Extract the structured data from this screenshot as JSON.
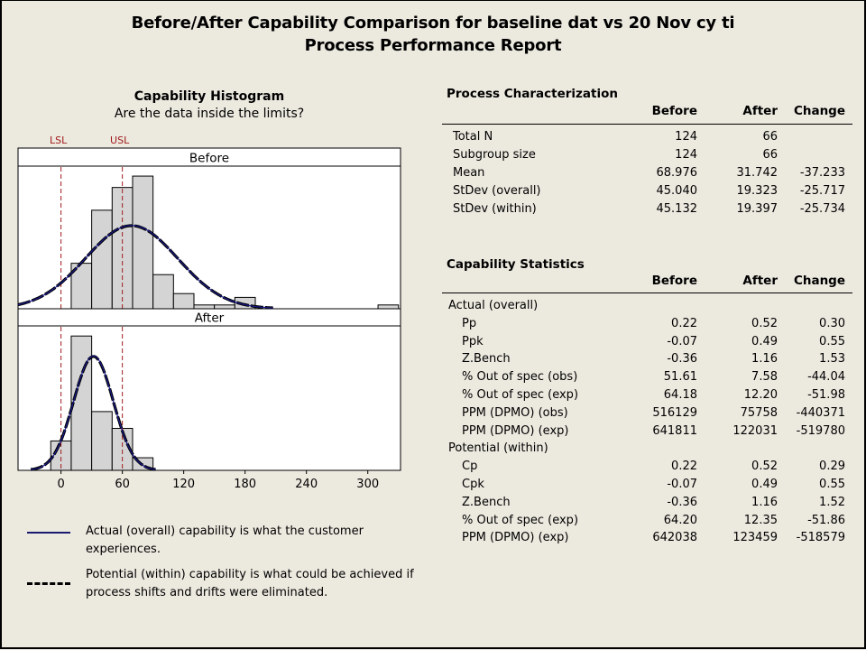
{
  "title": {
    "line1": "Before/After Capability Comparison for baseline dat vs 20 Nov cy ti",
    "line2": "Process Performance Report"
  },
  "histogram": {
    "title": "Capability Histogram",
    "subtitle": "Are the data inside the limits?"
  },
  "legend": {
    "solid": "Actual (overall) capability is what the customer experiences.",
    "dashed_line1": "Potential (within) capability is what could be achieved if",
    "dashed_line2": "process shifts and drifts were eliminated."
  },
  "process_characterization": {
    "heading": "Process Characterization",
    "columns": [
      "Before",
      "After",
      "Change"
    ],
    "rows": [
      {
        "label": "Total N",
        "before": "124",
        "after": "66",
        "change": ""
      },
      {
        "label": "Subgroup size",
        "before": "124",
        "after": "66",
        "change": ""
      },
      {
        "label": "Mean",
        "before": "68.976",
        "after": "31.742",
        "change": "-37.233"
      },
      {
        "label": "StDev (overall)",
        "before": "45.040",
        "after": "19.323",
        "change": "-25.717"
      },
      {
        "label": "StDev (within)",
        "before": "45.132",
        "after": "19.397",
        "change": "-25.734"
      }
    ]
  },
  "capability_statistics": {
    "heading": "Capability Statistics",
    "columns": [
      "Before",
      "After",
      "Change"
    ],
    "groups": [
      {
        "label": "Actual (overall)",
        "rows": [
          {
            "label": "Pp",
            "before": "0.22",
            "after": "0.52",
            "change": "0.30"
          },
          {
            "label": "Ppk",
            "before": "-0.07",
            "after": "0.49",
            "change": "0.55"
          },
          {
            "label": "Z.Bench",
            "before": "-0.36",
            "after": "1.16",
            "change": "1.53"
          },
          {
            "label": "% Out of spec (obs)",
            "before": "51.61",
            "after": "7.58",
            "change": "-44.04"
          },
          {
            "label": "% Out of spec (exp)",
            "before": "64.18",
            "after": "12.20",
            "change": "-51.98"
          },
          {
            "label": "PPM (DPMO) (obs)",
            "before": "516129",
            "after": "75758",
            "change": "-440371"
          },
          {
            "label": "PPM (DPMO) (exp)",
            "before": "641811",
            "after": "122031",
            "change": "-519780"
          }
        ]
      },
      {
        "label": "Potential (within)",
        "rows": [
          {
            "label": "Cp",
            "before": "0.22",
            "after": "0.52",
            "change": "0.29"
          },
          {
            "label": "Cpk",
            "before": "-0.07",
            "after": "0.49",
            "change": "0.55"
          },
          {
            "label": "Z.Bench",
            "before": "-0.36",
            "after": "1.16",
            "change": "1.52"
          },
          {
            "label": "% Out of spec (exp)",
            "before": "64.20",
            "after": "12.35",
            "change": "-51.86"
          },
          {
            "label": "PPM (DPMO) (exp)",
            "before": "642038",
            "after": "123459",
            "change": "-518579"
          }
        ]
      }
    ]
  },
  "chart_data": {
    "type": "histogram",
    "title": "Capability Histogram",
    "subtitle": "Are the data inside the limits?",
    "xlim": [
      -42,
      332
    ],
    "x_ticks": [
      0,
      60,
      120,
      180,
      240,
      300
    ],
    "x_tick_labels": [
      "0",
      "60",
      "120",
      "180",
      "240",
      "300"
    ],
    "spec_limits": [
      {
        "label": "LSL",
        "value": 0
      },
      {
        "label": "USL",
        "value": 60
      }
    ],
    "bin_width": 20,
    "colors": {
      "bar_fill": "#d4d4d4",
      "bar_stroke": "#000000",
      "overall_curve": "#1a1a8c",
      "within_curve": "#000000",
      "spec_line": "#a01c1c"
    },
    "panels": [
      {
        "label": "Before",
        "bins": [
          {
            "start": 10,
            "count": 12
          },
          {
            "start": 30,
            "count": 26
          },
          {
            "start": 50,
            "count": 32
          },
          {
            "start": 70,
            "count": 35
          },
          {
            "start": 90,
            "count": 9
          },
          {
            "start": 110,
            "count": 4
          },
          {
            "start": 130,
            "count": 1
          },
          {
            "start": 150,
            "count": 1
          },
          {
            "start": 170,
            "count": 3
          },
          {
            "start": 310,
            "count": 1
          }
        ],
        "n": 124,
        "mean": 68.976,
        "sd_overall": 45.04,
        "sd_within": 45.132
      },
      {
        "label": "After",
        "bins": [
          {
            "start": -10,
            "count": 7
          },
          {
            "start": 10,
            "count": 32
          },
          {
            "start": 30,
            "count": 14
          },
          {
            "start": 50,
            "count": 10
          },
          {
            "start": 70,
            "count": 3
          }
        ],
        "n": 66,
        "mean": 31.742,
        "sd_overall": 19.323,
        "sd_within": 19.397
      }
    ],
    "legend": [
      {
        "style": "solid",
        "label": "Actual (overall) capability is what the customer experiences."
      },
      {
        "style": "dashed",
        "label": "Potential (within) capability is what could be achieved if process shifts and drifts were eliminated."
      }
    ]
  }
}
